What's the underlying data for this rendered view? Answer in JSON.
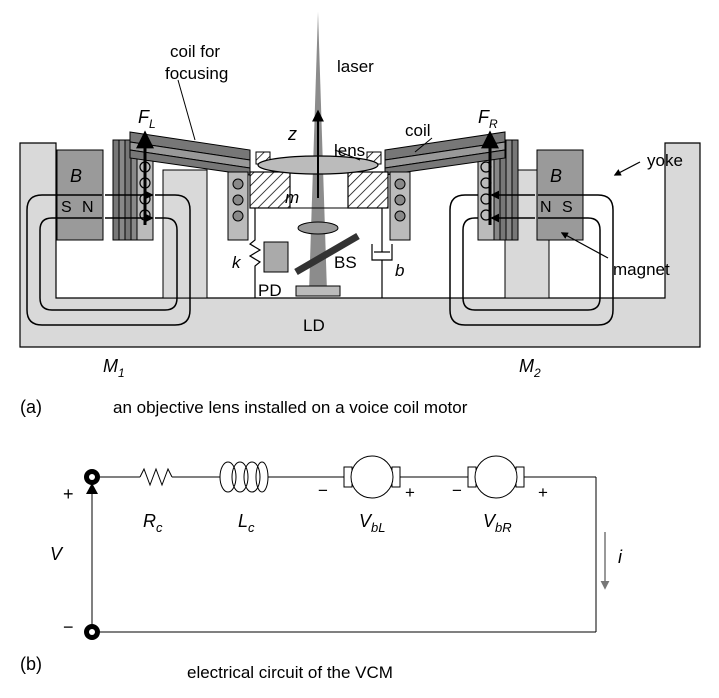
{
  "part_a": {
    "labels": {
      "coil_focusing_line1": "coil for",
      "coil_focusing_line2": "focusing",
      "laser": "laser",
      "force_left": "F",
      "force_left_sub": "L",
      "force_right": "F",
      "force_right_sub": "R",
      "z_axis": "z",
      "lens": "lens",
      "coil": "coil",
      "yoke": "yoke",
      "field_left": "B",
      "field_right": "B",
      "pole_south_left": "S",
      "pole_north_left": "N",
      "pole_north_right": "N",
      "pole_south_right": "S",
      "mass": "m",
      "spring": "k",
      "damper": "b",
      "beam_splitter": "BS",
      "photodiode": "PD",
      "laser_diode": "LD",
      "magnet": "magnet",
      "motor_left": "M",
      "motor_left_sub": "1",
      "motor_right": "M",
      "motor_right_sub": "2"
    },
    "caption_tag": "(a)",
    "caption": "an objective lens installed on a voice coil motor"
  },
  "part_b": {
    "labels": {
      "resistor": "R",
      "resistor_sub": "c",
      "inductor": "L",
      "inductor_sub": "c",
      "emf_left": "V",
      "emf_left_sub": "bL",
      "emf_right": "V",
      "emf_right_sub": "bR",
      "source": "V",
      "current": "i",
      "plus": "+",
      "minus": "−"
    },
    "caption_tag": "(b)",
    "caption": "electrical circuit of the VCM"
  }
}
